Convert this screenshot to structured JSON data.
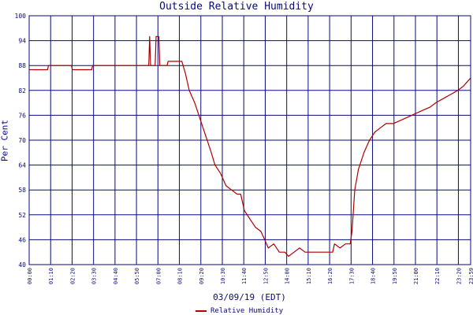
{
  "chart_data": {
    "type": "line",
    "title": "Outside Relative Humidity",
    "xlabel": "03/09/19 (EDT)",
    "ylabel": "Per Cent",
    "y_ticks": [
      "40",
      "46",
      "52",
      "58",
      "64",
      "70",
      "76",
      "82",
      "88",
      "94",
      "100"
    ],
    "ylim": [
      40,
      100
    ],
    "x_ticks": [
      "00:00",
      "01:10",
      "02:20",
      "03:30",
      "04:40",
      "05:50",
      "07:00",
      "08:10",
      "09:20",
      "10:30",
      "11:40",
      "12:50",
      "14:00",
      "15:10",
      "16:20",
      "17:30",
      "18:40",
      "19:50",
      "21:00",
      "22:10",
      "23:20",
      "23:59"
    ],
    "x_range_hours": [
      0,
      24
    ],
    "grid": true,
    "legend_position": "bottom-center",
    "series": [
      {
        "name": "Relative Humidity",
        "color": "#b00000",
        "points": [
          [
            0.0,
            87
          ],
          [
            1.0,
            87
          ],
          [
            1.05,
            88
          ],
          [
            2.3,
            88
          ],
          [
            2.35,
            87
          ],
          [
            3.4,
            87
          ],
          [
            3.45,
            88
          ],
          [
            6.5,
            88
          ],
          [
            6.55,
            95
          ],
          [
            6.6,
            88
          ],
          [
            6.85,
            88
          ],
          [
            6.9,
            95
          ],
          [
            7.05,
            95
          ],
          [
            7.1,
            88
          ],
          [
            7.5,
            88
          ],
          [
            7.55,
            89
          ],
          [
            8.3,
            89
          ],
          [
            8.5,
            86
          ],
          [
            8.7,
            82
          ],
          [
            9.0,
            79
          ],
          [
            9.3,
            75
          ],
          [
            9.6,
            71
          ],
          [
            9.9,
            67
          ],
          [
            10.1,
            64
          ],
          [
            10.4,
            62
          ],
          [
            10.7,
            59
          ],
          [
            11.0,
            58
          ],
          [
            11.3,
            57
          ],
          [
            11.5,
            57
          ],
          [
            11.7,
            53
          ],
          [
            12.0,
            51
          ],
          [
            12.3,
            49
          ],
          [
            12.6,
            48
          ],
          [
            12.8,
            46
          ],
          [
            13.0,
            44
          ],
          [
            13.3,
            45
          ],
          [
            13.6,
            43
          ],
          [
            13.9,
            43
          ],
          [
            14.1,
            42
          ],
          [
            14.4,
            43
          ],
          [
            14.7,
            44
          ],
          [
            15.0,
            43
          ],
          [
            15.4,
            43
          ],
          [
            15.8,
            43
          ],
          [
            16.2,
            43
          ],
          [
            16.5,
            43
          ],
          [
            16.6,
            45
          ],
          [
            16.9,
            44
          ],
          [
            17.2,
            45
          ],
          [
            17.45,
            45
          ],
          [
            17.55,
            48
          ],
          [
            17.7,
            58
          ],
          [
            17.9,
            63
          ],
          [
            18.2,
            67
          ],
          [
            18.5,
            70
          ],
          [
            18.8,
            72
          ],
          [
            19.1,
            73
          ],
          [
            19.4,
            74
          ],
          [
            19.8,
            74
          ],
          [
            20.3,
            75
          ],
          [
            20.8,
            76
          ],
          [
            21.3,
            77
          ],
          [
            21.8,
            78
          ],
          [
            22.1,
            79
          ],
          [
            22.5,
            80
          ],
          [
            22.9,
            81
          ],
          [
            23.3,
            82
          ],
          [
            23.6,
            83
          ],
          [
            23.8,
            84
          ],
          [
            24.0,
            85
          ]
        ]
      }
    ]
  }
}
